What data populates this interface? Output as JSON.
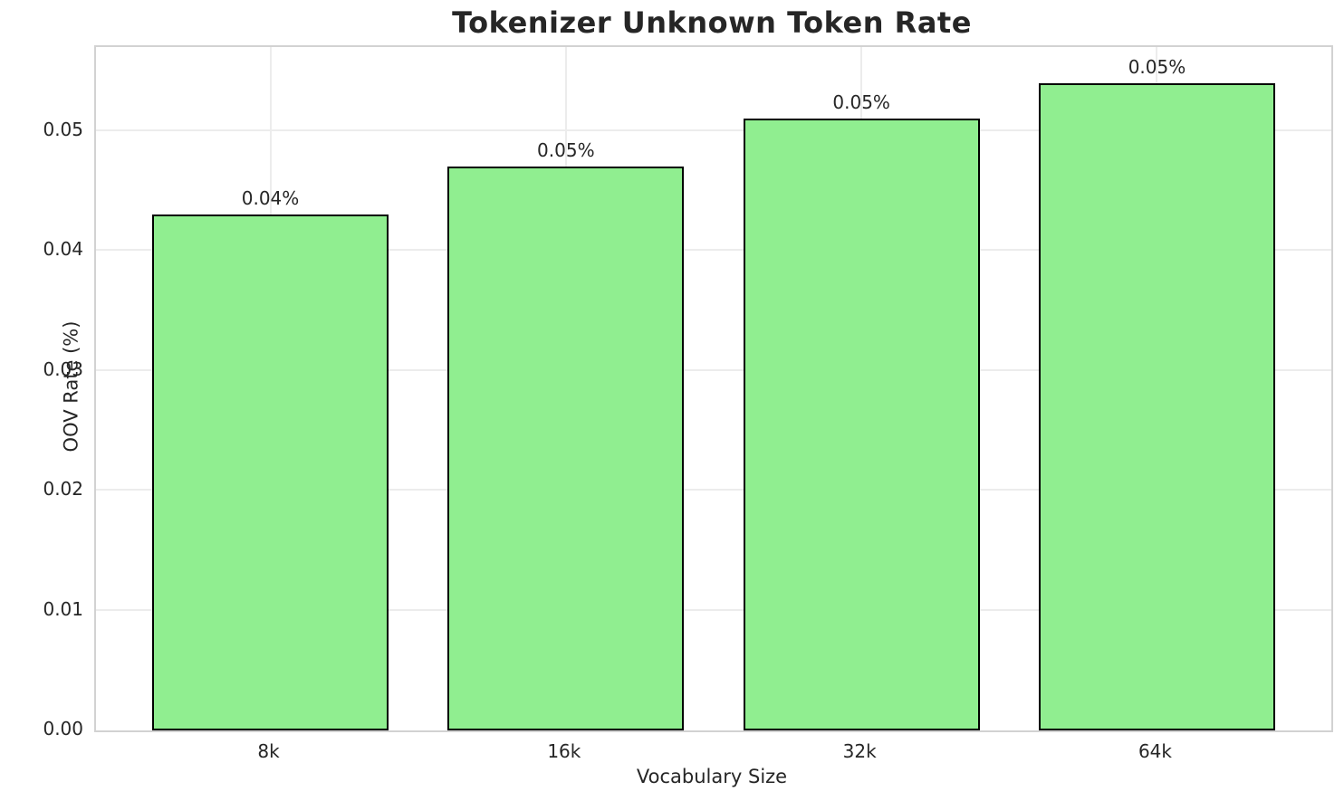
{
  "chart_data": {
    "type": "bar",
    "title": "Tokenizer Unknown Token Rate",
    "xlabel": "Vocabulary Size",
    "ylabel": "OOV Rate (%)",
    "categories": [
      "8k",
      "16k",
      "32k",
      "64k"
    ],
    "values": [
      0.043,
      0.047,
      0.051,
      0.054
    ],
    "bar_labels": [
      "0.04%",
      "0.05%",
      "0.05%",
      "0.05%"
    ],
    "ylim": [
      0,
      0.057
    ],
    "ytick_values": [
      0,
      0.01,
      0.02,
      0.03,
      0.04,
      0.05
    ],
    "ytick_labels": [
      "0.00",
      "0.01",
      "0.02",
      "0.03",
      "0.04",
      "0.05"
    ],
    "grid": true,
    "legend_position": "none",
    "colors": {
      "bar_fill": "#90EE90",
      "bar_edge": "#000000",
      "grid_line": "#ECECEC",
      "spine": "#D2D2D2",
      "text": "#262626",
      "background": "#FFFFFF"
    }
  }
}
